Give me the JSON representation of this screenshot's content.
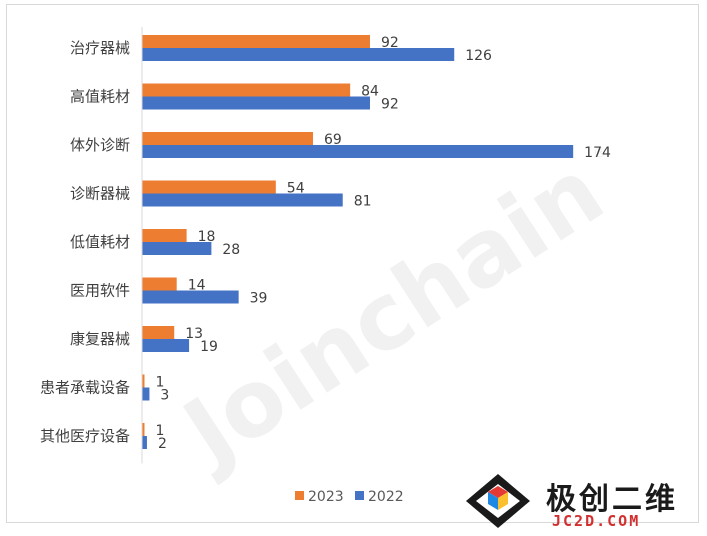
{
  "chart_data": {
    "type": "bar",
    "orientation": "horizontal",
    "categories": [
      "治疗器械",
      "高值耗材",
      "体外诊断",
      "诊断器械",
      "低值耗材",
      "医用软件",
      "康复器械",
      "患者承载设备",
      "其他医疗设备"
    ],
    "series": [
      {
        "name": "2023",
        "color": "#ED7D31",
        "values": [
          92,
          84,
          69,
          54,
          18,
          14,
          13,
          1,
          1
        ]
      },
      {
        "name": "2022",
        "color": "#4472C4",
        "values": [
          126,
          92,
          174,
          81,
          28,
          39,
          19,
          3,
          2
        ]
      }
    ],
    "title": "",
    "xlabel": "",
    "ylabel": "",
    "xlim": [
      0,
      180
    ],
    "grid": false,
    "legend": "bottom-center"
  },
  "watermark": {
    "text": "Joinchain",
    "mark": "®"
  },
  "logo": {
    "title": "极创二维",
    "subtitle": "JC2D.COM"
  }
}
